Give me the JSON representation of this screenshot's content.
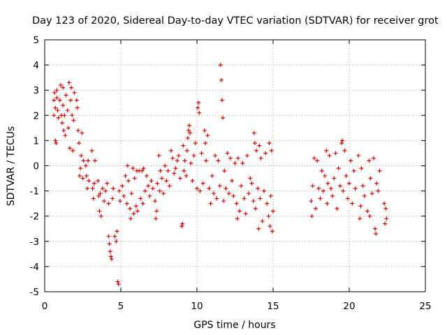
{
  "chart_data": {
    "type": "scatter",
    "title": "Day 123 of 2020, Sidereal Day-to-day VTEC variation (SDTVAR) for receiver grot",
    "xlabel": "GPS time / hours",
    "ylabel": "SDTVAR / TECUs",
    "xlim": [
      0,
      25
    ],
    "ylim": [
      -5,
      5
    ],
    "xticks": [
      0,
      5,
      10,
      15,
      20,
      25
    ],
    "yticks": [
      -5,
      -4,
      -3,
      -2,
      -1,
      0,
      1,
      2,
      3,
      4,
      5
    ],
    "grid": true,
    "marker": "+",
    "marker_color": "#e60000",
    "series": [
      {
        "name": "SDTVAR",
        "points": [
          [
            0.6,
            2.0
          ],
          [
            0.6,
            2.6
          ],
          [
            0.65,
            2.9
          ],
          [
            0.7,
            2.3
          ],
          [
            0.7,
            1.0
          ],
          [
            0.75,
            0.9
          ],
          [
            0.8,
            2.7
          ],
          [
            0.8,
            3.0
          ],
          [
            0.85,
            2.2
          ],
          [
            0.9,
            1.9
          ],
          [
            1.0,
            2.6
          ],
          [
            1.05,
            3.2
          ],
          [
            1.1,
            2.0
          ],
          [
            1.15,
            1.7
          ],
          [
            1.2,
            3.1
          ],
          [
            1.2,
            2.4
          ],
          [
            1.25,
            1.4
          ],
          [
            1.3,
            2.0
          ],
          [
            1.35,
            1.2
          ],
          [
            1.4,
            2.8
          ],
          [
            1.5,
            2.2
          ],
          [
            1.55,
            1.5
          ],
          [
            1.6,
            3.3
          ],
          [
            1.65,
            0.7
          ],
          [
            1.7,
            2.6
          ],
          [
            1.75,
            3.1
          ],
          [
            1.8,
            2.0
          ],
          [
            1.85,
            0.6
          ],
          [
            1.9,
            1.8
          ],
          [
            1.95,
            2.9
          ],
          [
            2.1,
            2.6
          ],
          [
            2.15,
            2.3
          ],
          [
            2.2,
            1.4
          ],
          [
            2.25,
            0.9
          ],
          [
            2.3,
            -0.4
          ],
          [
            2.35,
            -0.1
          ],
          [
            2.4,
            0.4
          ],
          [
            2.45,
            1.3
          ],
          [
            2.5,
            -0.5
          ],
          [
            2.55,
            0.2
          ],
          [
            2.7,
            0.0
          ],
          [
            2.75,
            -0.4
          ],
          [
            2.8,
            -0.9
          ],
          [
            2.85,
            0.2
          ],
          [
            2.9,
            -0.6
          ],
          [
            3.1,
            0.6
          ],
          [
            3.15,
            -0.9
          ],
          [
            3.2,
            -1.3
          ],
          [
            3.25,
            -0.7
          ],
          [
            3.3,
            0.2
          ],
          [
            3.5,
            -0.6
          ],
          [
            3.55,
            -1.2
          ],
          [
            3.6,
            -1.8
          ],
          [
            3.65,
            -1.1
          ],
          [
            3.7,
            -2.0
          ],
          [
            3.8,
            -0.9
          ],
          [
            3.9,
            -1.4
          ],
          [
            4.0,
            -1.0
          ],
          [
            4.1,
            -0.7
          ],
          [
            4.2,
            -1.5
          ],
          [
            4.2,
            -2.8
          ],
          [
            4.25,
            -3.1
          ],
          [
            4.3,
            -3.4
          ],
          [
            4.35,
            -3.6
          ],
          [
            4.4,
            -3.7
          ],
          [
            4.45,
            -1.3
          ],
          [
            4.5,
            -0.9
          ],
          [
            4.6,
            -2.8
          ],
          [
            4.7,
            -3.0
          ],
          [
            4.75,
            -2.6
          ],
          [
            4.8,
            -4.6
          ],
          [
            4.85,
            -4.7
          ],
          [
            4.9,
            -1.0
          ],
          [
            4.95,
            -1.4
          ],
          [
            5.1,
            -0.8
          ],
          [
            5.2,
            -1.2
          ],
          [
            5.3,
            -0.4
          ],
          [
            5.4,
            -1.5
          ],
          [
            5.45,
            0.0
          ],
          [
            5.5,
            -0.6
          ],
          [
            5.6,
            -1.7
          ],
          [
            5.65,
            -2.1
          ],
          [
            5.7,
            -1.1
          ],
          [
            5.8,
            -0.1
          ],
          [
            5.85,
            -1.9
          ],
          [
            5.9,
            -0.5
          ],
          [
            6.0,
            -1.6
          ],
          [
            6.05,
            -0.2
          ],
          [
            6.1,
            -1.8
          ],
          [
            6.2,
            -0.2
          ],
          [
            6.3,
            -1.3
          ],
          [
            6.4,
            -0.2
          ],
          [
            6.45,
            -1.5
          ],
          [
            6.5,
            -0.1
          ],
          [
            6.6,
            -1.0
          ],
          [
            6.7,
            -0.4
          ],
          [
            6.8,
            -0.8
          ],
          [
            6.9,
            -1.2
          ],
          [
            7.0,
            -0.6
          ],
          [
            7.1,
            -0.9
          ],
          [
            7.25,
            -1.4
          ],
          [
            7.3,
            -2.1
          ],
          [
            7.35,
            -1.8
          ],
          [
            7.4,
            -0.7
          ],
          [
            7.5,
            0.4
          ],
          [
            7.55,
            -1.0
          ],
          [
            7.6,
            -0.2
          ],
          [
            7.7,
            -0.5
          ],
          [
            7.8,
            -1.1
          ],
          [
            7.9,
            0.0
          ],
          [
            8.0,
            -0.6
          ],
          [
            8.1,
            -0.2
          ],
          [
            8.2,
            -0.8
          ],
          [
            8.3,
            0.6
          ],
          [
            8.4,
            0.3
          ],
          [
            8.5,
            -0.3
          ],
          [
            8.6,
            -0.1
          ],
          [
            8.7,
            0.2
          ],
          [
            8.8,
            0.4
          ],
          [
            8.9,
            -0.5
          ],
          [
            9.0,
            -2.4
          ],
          [
            9.05,
            -2.3
          ],
          [
            9.1,
            0.8
          ],
          [
            9.15,
            -0.2
          ],
          [
            9.2,
            0.2
          ],
          [
            9.3,
            -0.4
          ],
          [
            9.35,
            0.6
          ],
          [
            9.4,
            1.1
          ],
          [
            9.45,
            1.4
          ],
          [
            9.5,
            1.6
          ],
          [
            9.55,
            1.3
          ],
          [
            9.6,
            0.1
          ],
          [
            9.7,
            -0.6
          ],
          [
            9.8,
            0.4
          ],
          [
            9.9,
            0.9
          ],
          [
            10.0,
            -0.9
          ],
          [
            10.05,
            2.3
          ],
          [
            10.1,
            2.5
          ],
          [
            10.15,
            2.1
          ],
          [
            10.2,
            -1.0
          ],
          [
            10.3,
            0.5
          ],
          [
            10.4,
            -0.7
          ],
          [
            10.5,
            1.4
          ],
          [
            10.55,
            0.9
          ],
          [
            10.6,
            0.2
          ],
          [
            10.7,
            1.2
          ],
          [
            10.8,
            -0.9
          ],
          [
            10.9,
            -1.5
          ],
          [
            11.0,
            -0.4
          ],
          [
            11.1,
            -1.1
          ],
          [
            11.2,
            0.4
          ],
          [
            11.3,
            -1.3
          ],
          [
            11.4,
            0.2
          ],
          [
            11.5,
            -0.8
          ],
          [
            11.55,
            4.0
          ],
          [
            11.6,
            3.4
          ],
          [
            11.65,
            2.6
          ],
          [
            11.7,
            1.9
          ],
          [
            11.75,
            -1.4
          ],
          [
            11.8,
            -0.2
          ],
          [
            11.9,
            -0.9
          ],
          [
            12.0,
            0.5
          ],
          [
            12.1,
            -1.1
          ],
          [
            12.2,
            0.3
          ],
          [
            12.3,
            -0.6
          ],
          [
            12.4,
            -1.2
          ],
          [
            12.5,
            0.1
          ],
          [
            12.6,
            -1.5
          ],
          [
            12.65,
            -2.1
          ],
          [
            12.7,
            0.3
          ],
          [
            12.8,
            -1.8
          ],
          [
            12.9,
            -0.8
          ],
          [
            13.0,
            0.1
          ],
          [
            13.1,
            -1.3
          ],
          [
            13.2,
            -1.9
          ],
          [
            13.3,
            0.4
          ],
          [
            13.4,
            -1.1
          ],
          [
            13.5,
            -0.5
          ],
          [
            13.6,
            -0.7
          ],
          [
            13.7,
            -1.4
          ],
          [
            13.75,
            1.3
          ],
          [
            13.8,
            0.9
          ],
          [
            13.85,
            -1.7
          ],
          [
            13.9,
            0.6
          ],
          [
            14.0,
            -0.9
          ],
          [
            14.05,
            -2.5
          ],
          [
            14.1,
            0.8
          ],
          [
            14.15,
            -1.3
          ],
          [
            14.2,
            0.3
          ],
          [
            14.3,
            -2.2
          ],
          [
            14.4,
            -1.0
          ],
          [
            14.5,
            0.5
          ],
          [
            14.6,
            -1.5
          ],
          [
            14.7,
            -2.0
          ],
          [
            14.75,
            0.9
          ],
          [
            14.8,
            -2.4
          ],
          [
            14.85,
            -1.2
          ],
          [
            14.9,
            0.6
          ],
          [
            14.95,
            -2.6
          ],
          [
            15.0,
            -1.8
          ],
          [
            17.5,
            -1.4
          ],
          [
            17.55,
            -2.0
          ],
          [
            17.6,
            -0.8
          ],
          [
            17.7,
            0.3
          ],
          [
            17.8,
            -1.7
          ],
          [
            17.9,
            0.2
          ],
          [
            18.0,
            -0.9
          ],
          [
            18.1,
            -1.3
          ],
          [
            18.2,
            -0.2
          ],
          [
            18.3,
            -1.0
          ],
          [
            18.4,
            -0.4
          ],
          [
            18.5,
            0.6
          ],
          [
            18.55,
            -1.5
          ],
          [
            18.6,
            -0.7
          ],
          [
            18.7,
            0.4
          ],
          [
            18.8,
            -0.9
          ],
          [
            18.9,
            -1.2
          ],
          [
            19.0,
            -0.5
          ],
          [
            19.1,
            0.5
          ],
          [
            19.2,
            -1.7
          ],
          [
            19.3,
            -0.1
          ],
          [
            19.4,
            -0.8
          ],
          [
            19.5,
            0.9
          ],
          [
            19.55,
            1.0
          ],
          [
            19.6,
            -1.0
          ],
          [
            19.7,
            0.6
          ],
          [
            19.8,
            -0.4
          ],
          [
            19.9,
            -1.3
          ],
          [
            20.0,
            -0.7
          ],
          [
            20.1,
            0.2
          ],
          [
            20.2,
            -1.5
          ],
          [
            20.3,
            -0.2
          ],
          [
            20.4,
            -0.9
          ],
          [
            20.6,
            0.4
          ],
          [
            20.7,
            -2.1
          ],
          [
            20.75,
            -1.6
          ],
          [
            20.8,
            -0.1
          ],
          [
            20.9,
            -0.8
          ],
          [
            21.0,
            -1.2
          ],
          [
            21.2,
            -1.8
          ],
          [
            21.3,
            0.2
          ],
          [
            21.35,
            -2.0
          ],
          [
            21.4,
            -0.5
          ],
          [
            21.5,
            -1.1
          ],
          [
            21.6,
            0.3
          ],
          [
            21.7,
            -2.5
          ],
          [
            21.75,
            -2.7
          ],
          [
            21.8,
            -0.7
          ],
          [
            21.9,
            -1.0
          ],
          [
            22.0,
            -0.2
          ],
          [
            22.3,
            -1.5
          ],
          [
            22.35,
            -2.3
          ],
          [
            22.4,
            -1.7
          ],
          [
            22.45,
            -2.1
          ]
        ]
      }
    ]
  }
}
